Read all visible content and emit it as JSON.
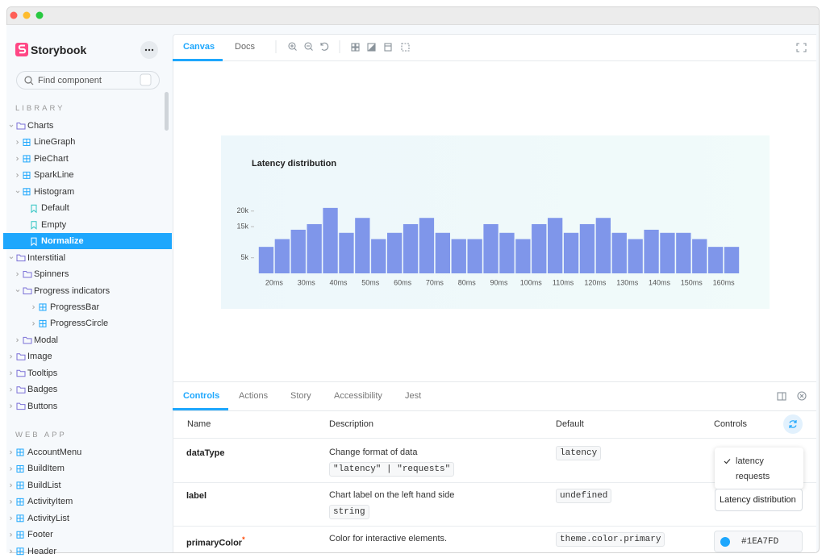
{
  "sidebar": {
    "brand": "Storybook",
    "search_placeholder": "Find component",
    "search_shortcut": "/",
    "sections": [
      {
        "title": "LIBRARY",
        "items": [
          "Charts",
          "LineGraph",
          "PieChart",
          "SparkLine",
          "Histogram",
          "Default",
          "Empty",
          "Normalize",
          "Interstitial",
          "Spinners",
          "Progress indicators",
          "ProgressBar",
          "ProgressCircle",
          "Modal",
          "Image",
          "Tooltips",
          "Badges",
          "Buttons"
        ]
      },
      {
        "title": "WEB APP",
        "items": [
          "AccountMenu",
          "BuildItem",
          "BuildList",
          "ActivityItem",
          "ActivityList",
          "Footer",
          "Header"
        ]
      }
    ]
  },
  "toolbar": {
    "tabs": [
      "Canvas",
      "Docs"
    ]
  },
  "chart_data": {
    "type": "bar",
    "title": "Latency distribution",
    "categories": [
      null,
      "20ms",
      null,
      "30ms",
      null,
      "40ms",
      null,
      "50ms",
      null,
      "60ms",
      null,
      "70ms",
      null,
      "80ms",
      null,
      "90ms",
      null,
      "100ms",
      null,
      "110ms",
      null,
      "120ms",
      null,
      "130ms",
      null,
      "140ms",
      null,
      "150ms",
      null,
      "160ms"
    ],
    "values": [
      8500,
      11000,
      14000,
      15800,
      21000,
      13000,
      17800,
      11000,
      13000,
      15800,
      17800,
      13000,
      11000,
      11000,
      15800,
      13000,
      11000,
      15800,
      17800,
      13000,
      15800,
      17800,
      13000,
      11000,
      14000,
      13000,
      13000,
      11000,
      8500,
      8500
    ],
    "color": "#7f96ea",
    "ylim": [
      0,
      22000
    ],
    "yticks": [
      {
        "value": 5000,
        "label": "5k"
      },
      {
        "value": 15000,
        "label": "15k"
      },
      {
        "value": 20000,
        "label": "20k"
      }
    ],
    "grid": false
  },
  "addons": {
    "tabs": [
      "Controls",
      "Actions",
      "Story",
      "Accessibility",
      "Jest"
    ],
    "table": {
      "columns": [
        "Name",
        "Description",
        "Default",
        "Controls"
      ],
      "rows": [
        {
          "name": "dataType",
          "description": "Change format of data",
          "type": "\"latency\" | \"requests\"",
          "default": "latency"
        },
        {
          "name": "label",
          "description": "Chart label on the left hand side",
          "type": "string",
          "default": "undefined"
        },
        {
          "name": "primaryColor",
          "required_mark": "*",
          "description": "Color for interactive elements.",
          "default": "theme.color.primary"
        }
      ]
    }
  },
  "controls": {
    "dropdown_options": [
      "latency",
      "requests"
    ],
    "label_input": "Latency distribution",
    "color_value": "#1EA7FD"
  }
}
